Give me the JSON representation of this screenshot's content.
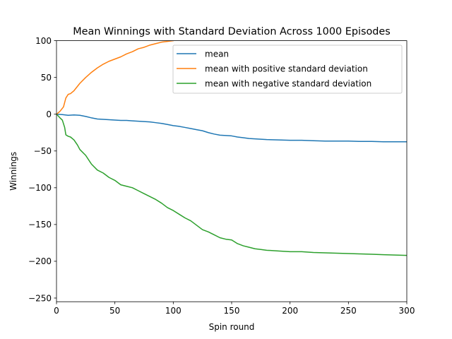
{
  "chart_data": {
    "type": "line",
    "title": "Mean Winnings with Standard Deviation Across 1000 Episodes",
    "xlabel": "Spin round",
    "ylabel": "Winnings",
    "xlim": [
      0,
      300
    ],
    "ylim": [
      -255,
      100
    ],
    "xticks": [
      0,
      50,
      100,
      150,
      200,
      250,
      300
    ],
    "yticks": [
      100,
      50,
      0,
      -50,
      -100,
      -150,
      -200,
      -250
    ],
    "grid": false,
    "legend_position": "upper right",
    "series": [
      {
        "name": "mean",
        "color": "#1f77b4",
        "x": [
          0,
          5,
          10,
          15,
          20,
          25,
          30,
          35,
          40,
          45,
          50,
          55,
          60,
          65,
          70,
          75,
          80,
          85,
          90,
          95,
          100,
          105,
          110,
          115,
          120,
          125,
          130,
          135,
          140,
          145,
          150,
          155,
          160,
          165,
          170,
          175,
          180,
          190,
          200,
          210,
          220,
          230,
          240,
          250,
          260,
          270,
          280,
          290,
          300
        ],
        "y": [
          0,
          -0.5,
          -1.5,
          -1,
          -1.5,
          -3,
          -5,
          -6.5,
          -7,
          -7.5,
          -8,
          -8.5,
          -8.5,
          -9,
          -9.5,
          -10,
          -10.5,
          -11.5,
          -12.5,
          -14,
          -15.5,
          -16.5,
          -18,
          -19.5,
          -21,
          -22.5,
          -25,
          -27,
          -28.5,
          -29,
          -29.5,
          -31,
          -32,
          -33,
          -33.5,
          -34,
          -34.5,
          -35,
          -35.5,
          -35.5,
          -36,
          -36.5,
          -36.5,
          -36.5,
          -37,
          -37,
          -37.5,
          -37.5,
          -37.5
        ]
      },
      {
        "name": "mean with positive standard deviation",
        "color": "#ff7f0e",
        "x": [
          0,
          3,
          6,
          8,
          10,
          12,
          15,
          20,
          25,
          30,
          35,
          40,
          45,
          50,
          55,
          60,
          65,
          70,
          75,
          80,
          85,
          90,
          95,
          100
        ],
        "y": [
          0,
          4,
          10,
          22,
          27,
          28,
          32,
          42,
          50,
          57,
          63,
          68,
          72,
          75,
          78,
          82,
          85,
          89,
          91,
          94,
          96,
          98,
          99,
          100
        ]
      },
      {
        "name": "mean with negative standard deviation",
        "color": "#2ca02c",
        "x": [
          0,
          3,
          5,
          7,
          8,
          10,
          12,
          15,
          18,
          20,
          25,
          30,
          35,
          40,
          45,
          50,
          55,
          60,
          65,
          70,
          75,
          80,
          85,
          90,
          95,
          100,
          105,
          110,
          115,
          120,
          125,
          130,
          135,
          140,
          145,
          150,
          155,
          160,
          165,
          170,
          175,
          180,
          190,
          200,
          210,
          220,
          230,
          240,
          250,
          260,
          270,
          280,
          290,
          300
        ],
        "y": [
          0,
          -5,
          -8,
          -18,
          -28,
          -30,
          -31,
          -35,
          -42,
          -48,
          -56,
          -68,
          -76,
          -80,
          -86,
          -90,
          -96,
          -98,
          -100,
          -104,
          -108,
          -112,
          -116,
          -121,
          -127,
          -131,
          -136,
          -141,
          -145,
          -151,
          -157,
          -160,
          -164,
          -168,
          -170,
          -171,
          -176,
          -179,
          -181,
          -183,
          -184,
          -185,
          -186,
          -187,
          -187,
          -188,
          -188.5,
          -189,
          -189.5,
          -190,
          -190.5,
          -191,
          -191.5,
          -192
        ]
      }
    ]
  }
}
